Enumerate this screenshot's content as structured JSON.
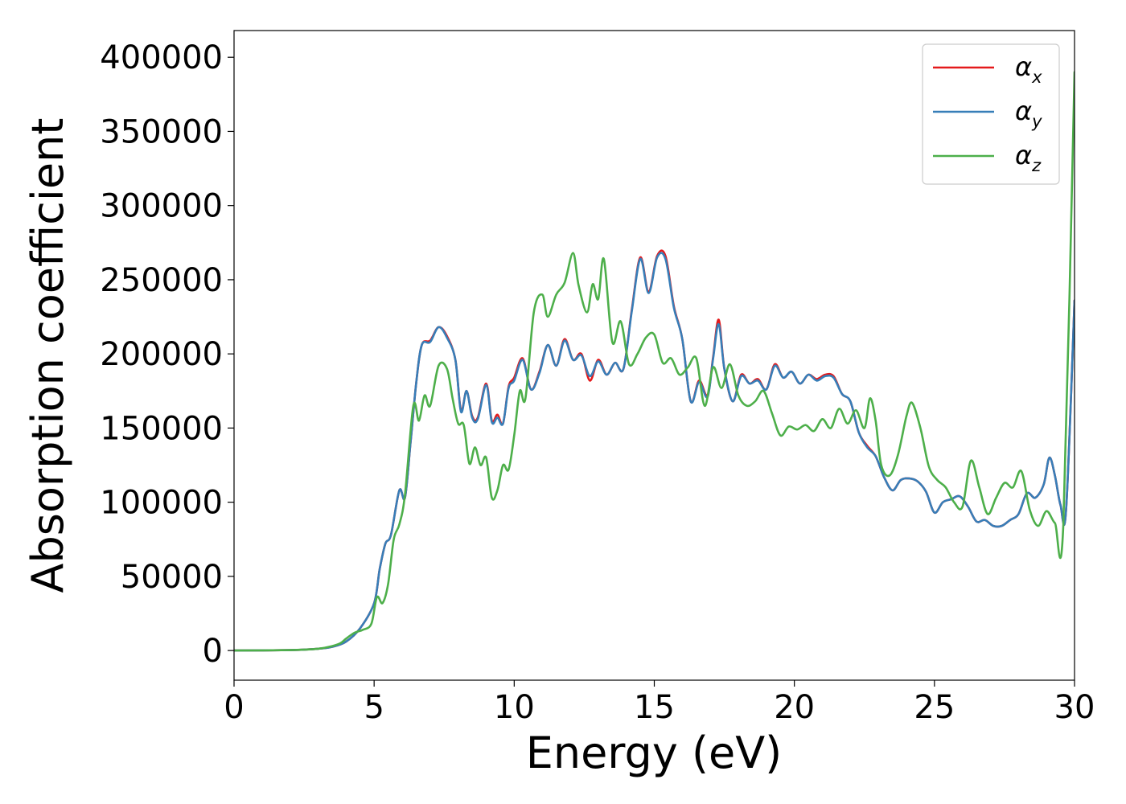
{
  "chart_data": {
    "type": "line",
    "xlabel": "Energy (eV)",
    "ylabel": "Absorption coefficient",
    "xlim": [
      0,
      30
    ],
    "ylim": [
      -20000,
      418000
    ],
    "xticks": [
      0,
      5,
      10,
      15,
      20,
      25,
      30
    ],
    "yticks": [
      0,
      50000,
      100000,
      150000,
      200000,
      250000,
      300000,
      350000,
      400000
    ],
    "grid": false,
    "legend_position": "top-right",
    "legend": [
      {
        "base": "α",
        "sub": "x"
      },
      {
        "base": "α",
        "sub": "y"
      },
      {
        "base": "α",
        "sub": "z"
      }
    ],
    "series": [
      {
        "name": "αx",
        "color": "#e41a1c",
        "x": [
          0,
          2,
          3,
          3.5,
          4,
          4.5,
          5,
          5.2,
          5.4,
          5.6,
          5.9,
          6.1,
          6.3,
          6.5,
          6.7,
          7.0,
          7.3,
          7.6,
          7.9,
          8.1,
          8.3,
          8.5,
          8.7,
          9.0,
          9.2,
          9.4,
          9.6,
          9.8,
          10.0,
          10.3,
          10.6,
          10.9,
          11.2,
          11.5,
          11.8,
          12.1,
          12.4,
          12.7,
          13.0,
          13.3,
          13.6,
          13.9,
          14.2,
          14.5,
          14.8,
          15.1,
          15.4,
          15.7,
          16.0,
          16.3,
          16.6,
          16.9,
          17.1,
          17.3,
          17.5,
          17.8,
          18.1,
          18.4,
          18.7,
          19.0,
          19.3,
          19.6,
          19.9,
          20.2,
          20.5,
          20.8,
          21.1,
          21.4,
          21.7,
          22.0,
          22.3,
          22.6,
          22.9,
          23.2,
          23.5,
          23.8,
          24.1,
          24.4,
          24.7,
          25.0,
          25.3,
          25.6,
          25.9,
          26.2,
          26.5,
          26.8,
          27.1,
          27.4,
          27.7,
          28.0,
          28.3,
          28.6,
          28.9,
          29.1,
          29.3,
          29.5,
          29.7,
          30.0
        ],
        "y": [
          0,
          300,
          1200,
          2500,
          6000,
          15000,
          32000,
          55000,
          72000,
          78000,
          108000,
          103000,
          140000,
          180000,
          206000,
          209000,
          218000,
          212000,
          196000,
          162000,
          175000,
          158000,
          157000,
          180000,
          155000,
          159000,
          153000,
          178000,
          184000,
          197000,
          176000,
          188000,
          206000,
          192000,
          210000,
          196000,
          200000,
          182000,
          196000,
          186000,
          194000,
          190000,
          230000,
          265000,
          242000,
          266000,
          266000,
          232000,
          210000,
          168000,
          182000,
          172000,
          198000,
          223000,
          190000,
          168000,
          186000,
          180000,
          183000,
          176000,
          193000,
          184000,
          188000,
          180000,
          186000,
          183000,
          186000,
          185000,
          173000,
          168000,
          147000,
          138000,
          131000,
          117000,
          108000,
          115000,
          116000,
          114000,
          107000,
          93000,
          100000,
          102000,
          104000,
          97000,
          87000,
          88000,
          84000,
          84000,
          88000,
          92000,
          106000,
          103000,
          112000,
          130000,
          118000,
          98000,
          95000,
          236000
        ]
      },
      {
        "name": "αy",
        "color": "#377eb8",
        "x": [
          0,
          2,
          3,
          3.5,
          4,
          4.5,
          5,
          5.2,
          5.4,
          5.6,
          5.9,
          6.1,
          6.3,
          6.5,
          6.7,
          7.0,
          7.3,
          7.6,
          7.9,
          8.1,
          8.3,
          8.5,
          8.7,
          9.0,
          9.2,
          9.4,
          9.6,
          9.8,
          10.0,
          10.3,
          10.6,
          10.9,
          11.2,
          11.5,
          11.8,
          12.1,
          12.4,
          12.7,
          13.0,
          13.3,
          13.6,
          13.9,
          14.2,
          14.5,
          14.8,
          15.1,
          15.4,
          15.7,
          16.0,
          16.3,
          16.6,
          16.9,
          17.1,
          17.3,
          17.5,
          17.8,
          18.1,
          18.4,
          18.7,
          19.0,
          19.3,
          19.6,
          19.9,
          20.2,
          20.5,
          20.8,
          21.1,
          21.4,
          21.7,
          22.0,
          22.3,
          22.6,
          22.9,
          23.2,
          23.5,
          23.8,
          24.1,
          24.4,
          24.7,
          25.0,
          25.3,
          25.6,
          25.9,
          26.2,
          26.5,
          26.8,
          27.1,
          27.4,
          27.7,
          28.0,
          28.3,
          28.6,
          28.9,
          29.1,
          29.3,
          29.5,
          29.7,
          30.0
        ],
        "y": [
          0,
          300,
          1200,
          2500,
          6000,
          15000,
          32000,
          55000,
          72000,
          78000,
          108000,
          103000,
          140000,
          180000,
          206000,
          208000,
          218000,
          211000,
          196000,
          161000,
          175000,
          157000,
          156000,
          179000,
          154000,
          157000,
          153000,
          177000,
          182000,
          196000,
          176000,
          187000,
          206000,
          192000,
          209000,
          196000,
          199000,
          185000,
          195000,
          186000,
          194000,
          190000,
          229000,
          264000,
          241000,
          265000,
          264000,
          231000,
          210000,
          168000,
          181000,
          171000,
          197000,
          220000,
          190000,
          168000,
          185000,
          180000,
          182000,
          176000,
          192000,
          184000,
          188000,
          180000,
          186000,
          182000,
          185000,
          184000,
          173000,
          168000,
          147000,
          137000,
          131000,
          117000,
          108000,
          115000,
          116000,
          114000,
          107000,
          93000,
          100000,
          102000,
          104000,
          97000,
          87000,
          88000,
          84000,
          84000,
          88000,
          92000,
          106000,
          103000,
          112000,
          130000,
          118000,
          98000,
          95000,
          236000
        ]
      },
      {
        "name": "αz",
        "color": "#4daf4a",
        "x": [
          0,
          2,
          3,
          3.5,
          3.8,
          4.0,
          4.3,
          4.6,
          4.9,
          5.1,
          5.3,
          5.5,
          5.7,
          5.9,
          6.1,
          6.4,
          6.6,
          6.8,
          7.0,
          7.3,
          7.6,
          7.8,
          8.0,
          8.2,
          8.4,
          8.6,
          8.8,
          9.0,
          9.2,
          9.4,
          9.6,
          9.8,
          10.0,
          10.2,
          10.4,
          10.7,
          11.0,
          11.2,
          11.5,
          11.8,
          12.1,
          12.3,
          12.6,
          12.8,
          13.0,
          13.2,
          13.5,
          13.8,
          14.1,
          14.4,
          14.7,
          15.0,
          15.3,
          15.6,
          15.9,
          16.2,
          16.5,
          16.8,
          17.1,
          17.4,
          17.7,
          18.0,
          18.3,
          18.6,
          18.9,
          19.2,
          19.5,
          19.8,
          20.1,
          20.4,
          20.7,
          21.0,
          21.3,
          21.6,
          21.9,
          22.2,
          22.5,
          22.7,
          22.9,
          23.1,
          23.4,
          23.7,
          24.0,
          24.2,
          24.5,
          24.8,
          25.1,
          25.4,
          25.7,
          26.0,
          26.3,
          26.6,
          26.9,
          27.2,
          27.5,
          27.8,
          28.1,
          28.4,
          28.7,
          29.0,
          29.3,
          29.6,
          30.0
        ],
        "y": [
          0,
          300,
          1200,
          3000,
          5000,
          8000,
          12000,
          14000,
          18000,
          36000,
          32000,
          45000,
          75000,
          85000,
          105000,
          165000,
          155000,
          172000,
          165000,
          192000,
          190000,
          170000,
          153000,
          152000,
          126000,
          137000,
          125000,
          130000,
          103000,
          108000,
          125000,
          122000,
          145000,
          175000,
          170000,
          228000,
          240000,
          225000,
          240000,
          248000,
          268000,
          246000,
          228000,
          247000,
          237000,
          264000,
          208000,
          222000,
          193000,
          200000,
          211000,
          213000,
          194000,
          197000,
          186000,
          191000,
          197000,
          165000,
          191000,
          177000,
          193000,
          172000,
          165000,
          168000,
          175000,
          160000,
          145000,
          151000,
          149000,
          152000,
          148000,
          156000,
          150000,
          163000,
          153000,
          162000,
          150000,
          170000,
          155000,
          125000,
          118000,
          132000,
          158000,
          167000,
          150000,
          124000,
          115000,
          110000,
          100000,
          97000,
          128000,
          110000,
          92000,
          103000,
          113000,
          110000,
          121000,
          95000,
          84000,
          94000,
          86000,
          85000,
          390000
        ]
      }
    ]
  }
}
